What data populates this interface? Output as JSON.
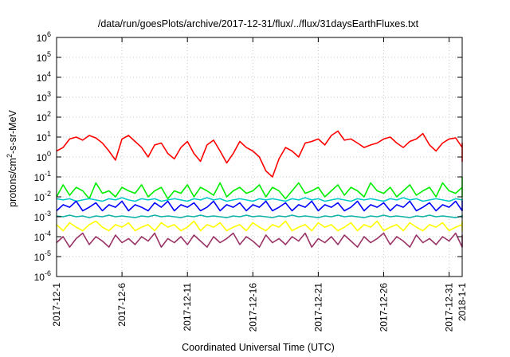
{
  "chart_data": {
    "type": "line",
    "title": "/data/run/goesPlots/archive/2017-12-31/flux/../flux/31daysEarthFluxes.txt",
    "xlabel": "Coordinated Universal Time (UTC)",
    "ylabel_parts": {
      "base": "protons/cm",
      "sup": "2",
      "rest": "-s-sr-MeV"
    },
    "y_scale": "log",
    "ylim": [
      1e-06,
      1000000.0
    ],
    "y_ticks": [
      {
        "value": 1e-06,
        "base": "10",
        "exp": "-6"
      },
      {
        "value": 1e-05,
        "base": "10",
        "exp": "-5"
      },
      {
        "value": 0.0001,
        "base": "10",
        "exp": "-4"
      },
      {
        "value": 0.001,
        "base": "10",
        "exp": "-3"
      },
      {
        "value": 0.01,
        "base": "10",
        "exp": "-2"
      },
      {
        "value": 0.1,
        "base": "10",
        "exp": "-1"
      },
      {
        "value": 1.0,
        "base": "10",
        "exp": "0"
      },
      {
        "value": 10.0,
        "base": "10",
        "exp": "1"
      },
      {
        "value": 100.0,
        "base": "10",
        "exp": "2"
      },
      {
        "value": 1000.0,
        "base": "10",
        "exp": "3"
      },
      {
        "value": 10000.0,
        "base": "10",
        "exp": "4"
      },
      {
        "value": 100000.0,
        "base": "10",
        "exp": "5"
      },
      {
        "value": 1000000.0,
        "base": "10",
        "exp": "6"
      }
    ],
    "x_range_days": [
      0,
      31
    ],
    "x_ticks": [
      {
        "day": 0,
        "label": "2017-12-1"
      },
      {
        "day": 5,
        "label": "2017-12-6"
      },
      {
        "day": 10,
        "label": "2017-12-11"
      },
      {
        "day": 15,
        "label": "2017-12-16"
      },
      {
        "day": 20,
        "label": "2017-12-21"
      },
      {
        "day": 25,
        "label": "2017-12-26"
      },
      {
        "day": 30,
        "label": "2017-12-31"
      },
      {
        "day": 31,
        "label": "2018-1-1"
      }
    ],
    "grid": true,
    "legend": "none",
    "series": [
      {
        "color": "#ff0000",
        "x_step_days": 0.5,
        "values": [
          2,
          3,
          8,
          10,
          7,
          12,
          9,
          5,
          2,
          0.7,
          8,
          12,
          6,
          3,
          1,
          4,
          5,
          1.5,
          0.8,
          3,
          6,
          1.5,
          0.6,
          4,
          7,
          2,
          0.5,
          1.5,
          6,
          3,
          2,
          1,
          0.2,
          0.1,
          0.8,
          3,
          2,
          1,
          5,
          6,
          8,
          4,
          12,
          20,
          7,
          8,
          5,
          3,
          4,
          5,
          8,
          10,
          5,
          3,
          6,
          8,
          15,
          4,
          2,
          5,
          8,
          9,
          3,
          4,
          2,
          0.8,
          0.6,
          2,
          5,
          3,
          2,
          1,
          4,
          1.5
        ]
      },
      {
        "color": "#00ee00",
        "x_step_days": 0.5,
        "values": [
          0.01,
          0.04,
          0.012,
          0.03,
          0.02,
          0.008,
          0.05,
          0.015,
          0.02,
          0.01,
          0.03,
          0.02,
          0.015,
          0.04,
          0.01,
          0.02,
          0.03,
          0.008,
          0.02,
          0.015,
          0.04,
          0.01,
          0.03,
          0.02,
          0.012,
          0.05,
          0.01,
          0.02,
          0.03,
          0.015,
          0.02,
          0.04,
          0.01,
          0.03,
          0.02,
          0.008,
          0.02,
          0.05,
          0.015,
          0.02,
          0.03,
          0.01,
          0.02,
          0.04,
          0.012,
          0.03,
          0.02,
          0.01,
          0.05,
          0.02,
          0.015,
          0.03,
          0.01,
          0.02,
          0.04,
          0.012,
          0.02,
          0.03,
          0.01,
          0.05,
          0.02,
          0.015,
          0.03,
          0.1,
          0.02,
          0.01,
          0.04,
          0.02,
          0.015,
          0.03,
          0.01,
          0.02,
          0.03
        ]
      },
      {
        "color": "#00c8c8",
        "x_step_days": 0.5,
        "values": [
          0.008,
          0.007,
          0.008,
          0.006,
          0.007,
          0.008,
          0.007,
          0.006,
          0.008,
          0.007,
          0.009,
          0.007,
          0.006,
          0.008,
          0.007,
          0.008,
          0.006,
          0.007,
          0.008,
          0.007,
          0.006,
          0.008,
          0.007,
          0.009,
          0.007,
          0.008,
          0.006,
          0.007,
          0.008,
          0.007,
          0.006,
          0.008,
          0.007,
          0.008,
          0.007,
          0.006,
          0.008,
          0.007,
          0.009,
          0.007,
          0.008,
          0.006,
          0.007,
          0.008,
          0.007,
          0.006,
          0.008,
          0.007,
          0.008,
          0.007,
          0.006,
          0.008,
          0.007,
          0.009,
          0.007,
          0.008,
          0.006,
          0.007,
          0.008,
          0.007,
          0.006,
          0.008,
          0.007,
          0.008,
          0.007,
          0.006,
          0.008,
          0.007,
          0.008,
          0.007,
          0.006,
          0.008,
          0.007
        ]
      },
      {
        "color": "#0000ff",
        "x_step_days": 0.5,
        "values": [
          0.002,
          0.004,
          0.003,
          0.006,
          0.002,
          0.003,
          0.005,
          0.002,
          0.004,
          0.003,
          0.006,
          0.002,
          0.004,
          0.003,
          0.002,
          0.005,
          0.003,
          0.006,
          0.002,
          0.004,
          0.003,
          0.005,
          0.002,
          0.003,
          0.006,
          0.002,
          0.004,
          0.003,
          0.005,
          0.002,
          0.004,
          0.003,
          0.006,
          0.002,
          0.003,
          0.005,
          0.002,
          0.004,
          0.003,
          0.006,
          0.002,
          0.004,
          0.003,
          0.005,
          0.002,
          0.003,
          0.006,
          0.002,
          0.004,
          0.003,
          0.005,
          0.002,
          0.004,
          0.003,
          0.006,
          0.002,
          0.003,
          0.005,
          0.002,
          0.004,
          0.003,
          0.006,
          0.002,
          0.004,
          0.003,
          0.005,
          0.002,
          0.003,
          0.006,
          0.002,
          0.004,
          0.003,
          0.005
        ]
      },
      {
        "color": "#10b4a8",
        "x_step_days": 0.5,
        "values": [
          0.0011,
          0.001,
          0.0012,
          0.001,
          0.0011,
          0.0009,
          0.0011,
          0.001,
          0.0012,
          0.001,
          0.0011,
          0.001,
          0.0009,
          0.0011,
          0.001,
          0.0012,
          0.001,
          0.0011,
          0.001,
          0.0009,
          0.0011,
          0.001,
          0.0012,
          0.001,
          0.0011,
          0.001,
          0.0009,
          0.0011,
          0.001,
          0.0012,
          0.001,
          0.0011,
          0.001,
          0.0009,
          0.0011,
          0.001,
          0.0012,
          0.001,
          0.0011,
          0.001,
          0.0009,
          0.0011,
          0.001,
          0.0012,
          0.001,
          0.0011,
          0.001,
          0.0009,
          0.0011,
          0.001,
          0.0012,
          0.001,
          0.0011,
          0.001,
          0.0009,
          0.0011,
          0.001,
          0.0012,
          0.001,
          0.0011,
          0.001,
          0.0009,
          0.0011,
          0.001,
          0.0012,
          0.001,
          0.0011,
          0.001,
          0.0009,
          0.0011,
          0.001,
          0.0012,
          0.001
        ]
      },
      {
        "color": "#ffff00",
        "x_step_days": 0.5,
        "values": [
          0.0004,
          0.0002,
          0.0005,
          0.0003,
          0.0002,
          0.0004,
          0.0006,
          0.0003,
          0.0002,
          0.0004,
          0.0003,
          0.0005,
          0.0002,
          0.0003,
          0.0004,
          0.0002,
          0.0005,
          0.0003,
          0.0004,
          0.0002,
          0.0003,
          0.0006,
          0.0002,
          0.0004,
          0.0003,
          0.0005,
          0.0002,
          0.0003,
          0.0004,
          0.0002,
          0.0005,
          0.0003,
          0.0002,
          0.0004,
          0.0003,
          0.0006,
          0.0002,
          0.0003,
          0.0004,
          0.0002,
          0.0005,
          0.0003,
          0.0004,
          0.0002,
          0.0003,
          0.0005,
          0.0002,
          0.0004,
          0.0003,
          0.0006,
          0.0002,
          0.0003,
          0.0004,
          0.0002,
          0.0005,
          0.0003,
          0.0002,
          0.0004,
          0.0003,
          0.0005,
          0.0002,
          0.0003,
          0.0004,
          0.0002,
          0.0006,
          0.0003,
          0.0004,
          0.0002,
          0.0003,
          0.0005,
          0.0002,
          0.0004,
          0.0003
        ]
      },
      {
        "color": "#993366",
        "x_step_days": 0.5,
        "values": [
          5e-05,
          0.0001,
          3e-05,
          8e-05,
          0.00015,
          4e-05,
          0.0001,
          6e-05,
          3e-05,
          0.00012,
          5e-05,
          8e-05,
          4e-05,
          0.0001,
          6e-05,
          0.00015,
          3e-05,
          8e-05,
          5e-05,
          0.0001,
          4e-05,
          0.00012,
          6e-05,
          3e-05,
          0.0001,
          5e-05,
          8e-05,
          0.00015,
          4e-05,
          0.0001,
          6e-05,
          3e-05,
          0.00012,
          5e-05,
          8e-05,
          4e-05,
          0.0001,
          6e-05,
          0.00015,
          3e-05,
          8e-05,
          5e-05,
          0.0001,
          4e-05,
          0.00012,
          6e-05,
          3e-05,
          0.0001,
          5e-05,
          8e-05,
          0.00015,
          4e-05,
          0.0001,
          6e-05,
          3e-05,
          0.00012,
          5e-05,
          8e-05,
          4e-05,
          0.0001,
          6e-05,
          0.00015,
          3e-05,
          8e-05,
          5e-05,
          0.0001,
          4e-05,
          0.00012,
          6e-05,
          3e-05,
          0.0001,
          5e-05,
          8e-05
        ]
      }
    ]
  }
}
